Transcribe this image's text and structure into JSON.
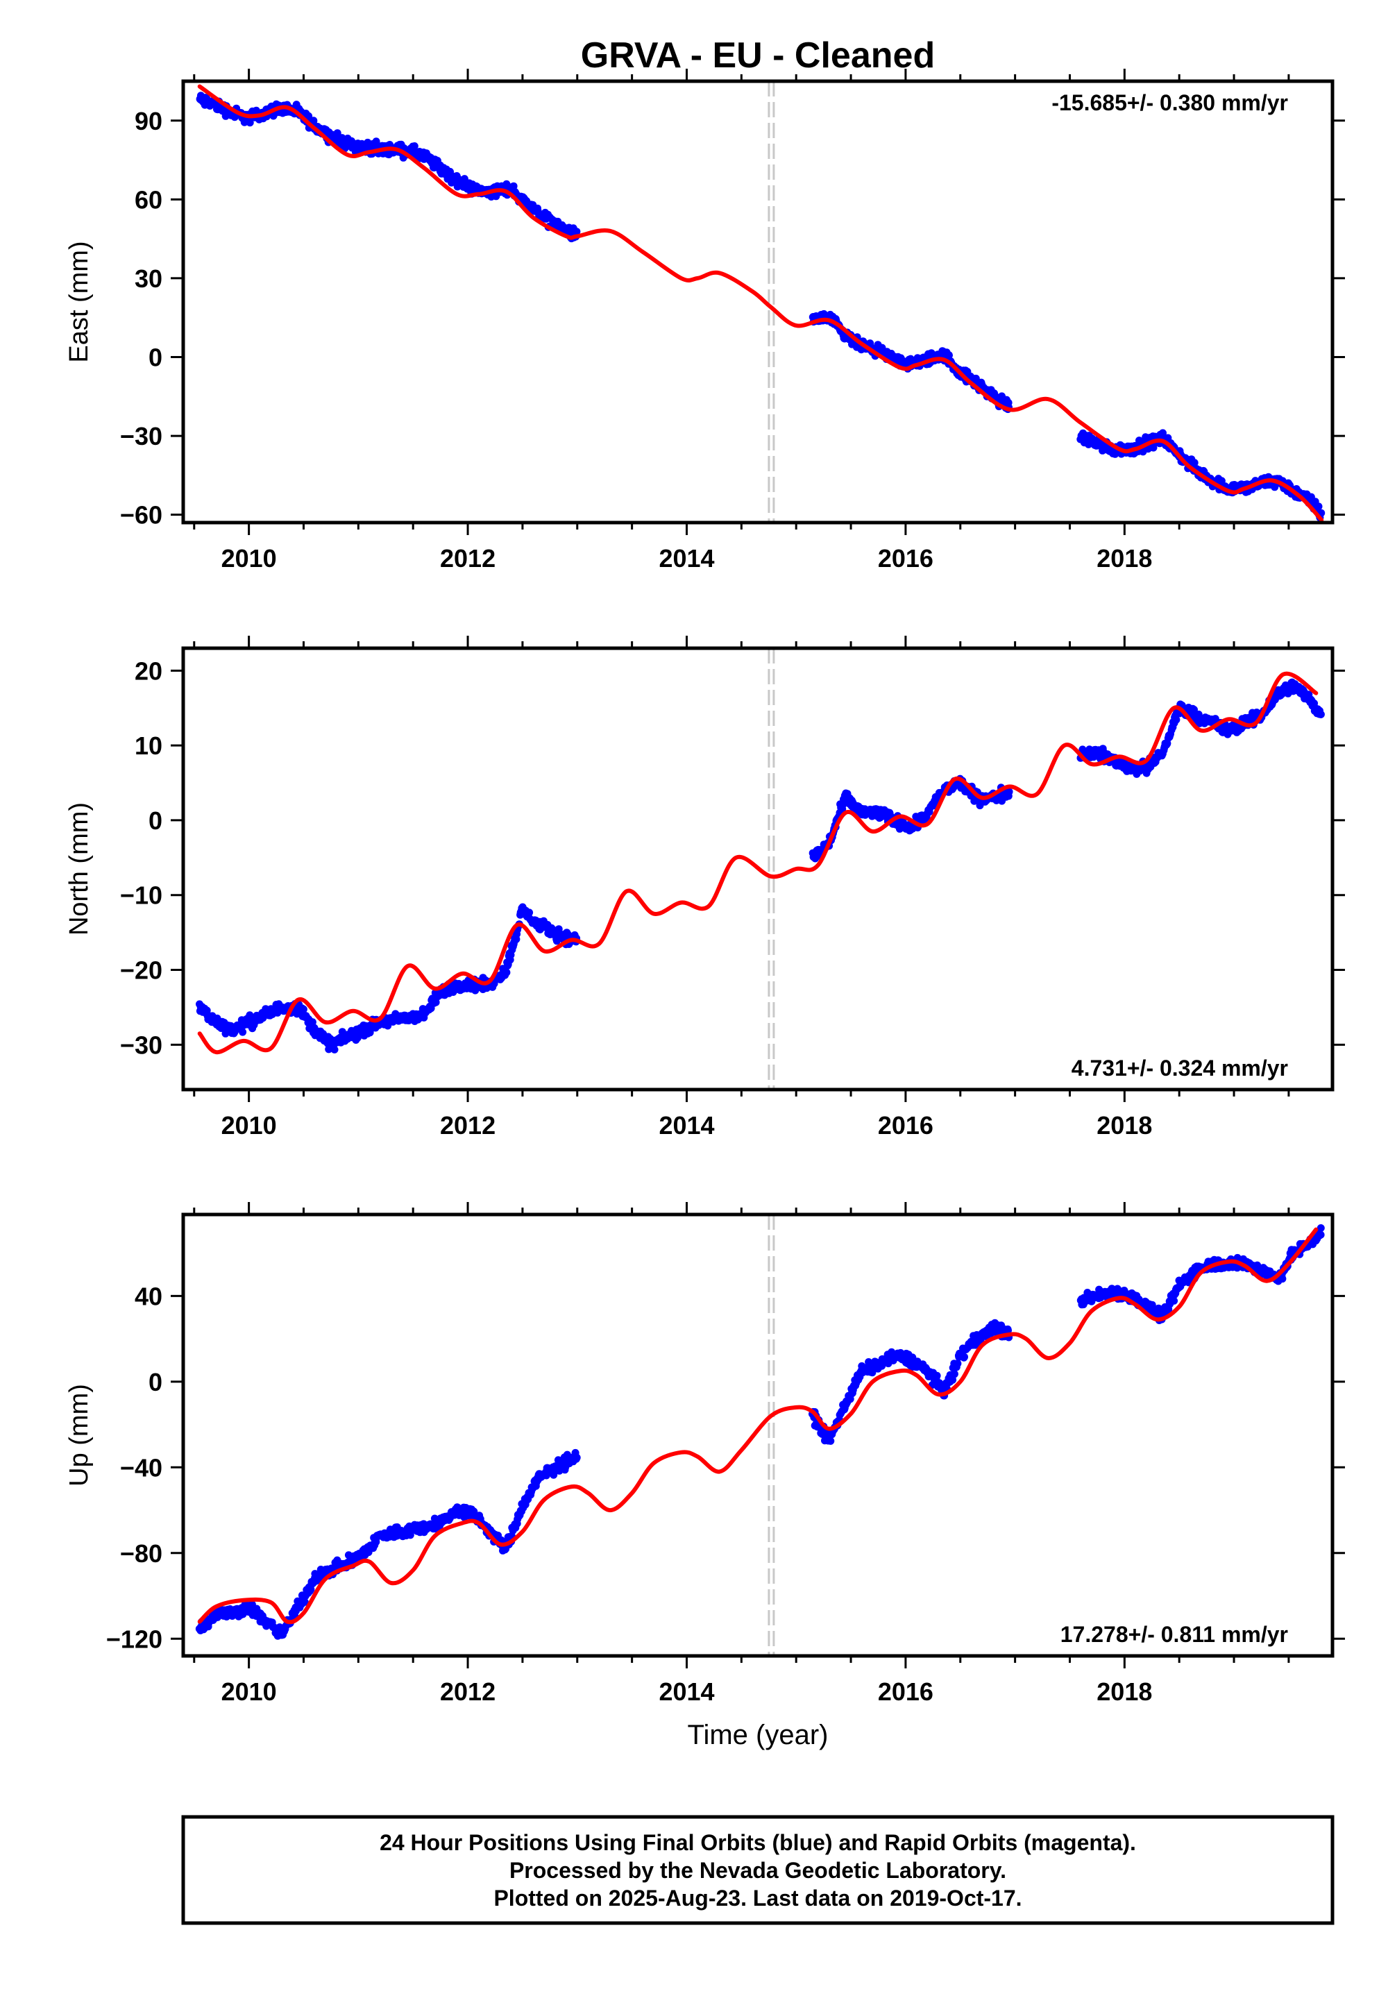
{
  "title": "GRVA  - EU - Cleaned",
  "colors": {
    "final_orbits": "#0000ff",
    "model": "#ff0000",
    "break": "#c8c8c8",
    "frame": "#000000"
  },
  "xlabel": "Time (year)",
  "footer": [
    "24 Hour Positions Using Final Orbits (blue) and Rapid Orbits (magenta).",
    "Processed by the Nevada Geodetic Laboratory.",
    "Plotted on 2025-Aug-23. Last data on 2019-Oct-17."
  ],
  "chart_data": [
    {
      "type": "scatter",
      "component": "East",
      "ylabel": "East (mm)",
      "rate_text": "-15.685+/- 0.380 mm/yr",
      "rate_position": "top-right",
      "xlim": [
        2009.4,
        2019.9
      ],
      "ylim": [
        -63,
        105
      ],
      "xticks": [
        2010,
        2012,
        2014,
        2016,
        2018
      ],
      "yticks": [
        90,
        60,
        30,
        0,
        -30,
        -60
      ],
      "equipment_change": 2014.77,
      "data_spans": [
        [
          2009.55,
          2013.0
        ],
        [
          2015.15,
          2016.95
        ],
        [
          2017.6,
          2019.8
        ]
      ],
      "model": {
        "name": "fit",
        "x": [
          2009.55,
          2009.9,
          2010.1,
          2010.35,
          2010.6,
          2010.9,
          2011.1,
          2011.35,
          2011.6,
          2011.9,
          2012.1,
          2012.35,
          2012.6,
          2012.9,
          2013.0,
          2013.3,
          2013.6,
          2013.95,
          2014.1,
          2014.3,
          2014.6,
          2014.77,
          2015.0,
          2015.3,
          2015.6,
          2015.95,
          2016.1,
          2016.35,
          2016.6,
          2016.95,
          2017.3,
          2017.6,
          2017.95,
          2018.1,
          2018.35,
          2018.6,
          2018.95,
          2019.1,
          2019.35,
          2019.6,
          2019.8
        ],
        "y": [
          103,
          93,
          92,
          95,
          87,
          77,
          78,
          79,
          72,
          62,
          62,
          63,
          53,
          46,
          46,
          48,
          40,
          30,
          30,
          32,
          25,
          19,
          12,
          14,
          5,
          -4,
          -3,
          -1,
          -10,
          -20,
          -16,
          -25,
          -35,
          -35,
          -32,
          -42,
          -51,
          -50,
          -47,
          -53,
          -62
        ]
      },
      "observed": {
        "name": "final orbits",
        "x": [
          2009.55,
          2009.7,
          2009.85,
          2010.0,
          2010.15,
          2010.3,
          2010.45,
          2010.6,
          2010.75,
          2010.9,
          2011.05,
          2011.2,
          2011.35,
          2011.5,
          2011.65,
          2011.8,
          2011.95,
          2012.1,
          2012.25,
          2012.4,
          2012.55,
          2012.7,
          2012.85,
          2013.0,
          2015.15,
          2015.3,
          2015.45,
          2015.6,
          2015.75,
          2015.9,
          2016.05,
          2016.2,
          2016.35,
          2016.5,
          2016.65,
          2016.8,
          2016.95,
          2017.6,
          2017.75,
          2017.9,
          2018.05,
          2018.2,
          2018.35,
          2018.5,
          2018.65,
          2018.8,
          2018.95,
          2019.1,
          2019.25,
          2019.4,
          2019.55,
          2019.7,
          2019.8
        ],
        "y": [
          98,
          96,
          93,
          91,
          93,
          95,
          93,
          88,
          84,
          81,
          80,
          79,
          79,
          78,
          75,
          70,
          66,
          63,
          63,
          64,
          58,
          53,
          49,
          46,
          14,
          15,
          8,
          4,
          2,
          -1,
          -3,
          -1,
          1,
          -6,
          -10,
          -15,
          -19,
          -30,
          -33,
          -35,
          -35,
          -33,
          -31,
          -37,
          -43,
          -47,
          -50,
          -50,
          -48,
          -47,
          -51,
          -55,
          -60
        ]
      }
    },
    {
      "type": "scatter",
      "component": "North",
      "ylabel": "North (mm)",
      "rate_text": "4.731+/- 0.324 mm/yr",
      "rate_position": "bottom-right",
      "xlim": [
        2009.4,
        2019.9
      ],
      "ylim": [
        -36,
        23
      ],
      "xticks": [
        2010,
        2012,
        2014,
        2016,
        2018
      ],
      "yticks": [
        20,
        10,
        0,
        -10,
        -20,
        -30
      ],
      "equipment_change": 2014.77,
      "data_spans": [
        [
          2009.55,
          2013.0
        ],
        [
          2015.15,
          2016.95
        ],
        [
          2017.6,
          2019.8
        ]
      ],
      "model": {
        "name": "fit",
        "x": [
          2009.55,
          2009.7,
          2009.95,
          2010.2,
          2010.45,
          2010.7,
          2010.95,
          2011.2,
          2011.45,
          2011.7,
          2011.95,
          2012.2,
          2012.45,
          2012.7,
          2012.95,
          2013.2,
          2013.45,
          2013.7,
          2013.95,
          2014.2,
          2014.45,
          2014.77,
          2015.0,
          2015.2,
          2015.45,
          2015.7,
          2015.95,
          2016.2,
          2016.45,
          2016.7,
          2016.95,
          2017.2,
          2017.45,
          2017.7,
          2017.95,
          2018.2,
          2018.45,
          2018.7,
          2018.95,
          2019.2,
          2019.45,
          2019.75
        ],
        "y": [
          -28.5,
          -31,
          -29.5,
          -30.5,
          -24,
          -27,
          -25.5,
          -26.5,
          -19.5,
          -22.5,
          -20.5,
          -21.5,
          -14,
          -17.5,
          -16,
          -16.5,
          -9.5,
          -12.5,
          -11,
          -11.5,
          -5,
          -7.5,
          -6.5,
          -6,
          1,
          -1.5,
          0.5,
          -0.5,
          5.5,
          3,
          4.5,
          3.5,
          10,
          7.5,
          8.5,
          8,
          15,
          12,
          13.5,
          13,
          19.5,
          17
        ]
      },
      "observed": {
        "name": "final orbits",
        "x": [
          2009.55,
          2009.7,
          2009.85,
          2010.0,
          2010.15,
          2010.3,
          2010.45,
          2010.6,
          2010.75,
          2010.9,
          2011.05,
          2011.2,
          2011.6,
          2011.75,
          2011.9,
          2012.05,
          2012.2,
          2012.35,
          2012.5,
          2012.65,
          2012.8,
          2012.95,
          2015.15,
          2015.3,
          2015.45,
          2015.6,
          2015.75,
          2015.9,
          2016.05,
          2016.2,
          2016.35,
          2016.5,
          2016.65,
          2016.8,
          2016.95,
          2017.6,
          2017.75,
          2017.9,
          2018.05,
          2018.2,
          2018.35,
          2018.5,
          2018.65,
          2018.8,
          2018.95,
          2019.1,
          2019.25,
          2019.4,
          2019.55,
          2019.7,
          2019.8
        ],
        "y": [
          -25,
          -27,
          -28,
          -27,
          -26,
          -25,
          -25,
          -28,
          -30,
          -29,
          -28,
          -27,
          -26,
          -23,
          -22,
          -22,
          -22,
          -20,
          -12,
          -14,
          -15,
          -16,
          -5,
          -3,
          3,
          1,
          1,
          0,
          -1,
          1,
          4,
          5,
          3,
          3,
          4,
          9,
          9,
          8,
          7,
          7,
          9,
          15,
          14,
          13,
          12,
          13,
          14,
          17,
          18,
          16,
          14
        ]
      }
    },
    {
      "type": "scatter",
      "component": "Up",
      "ylabel": "Up (mm)",
      "rate_text": "17.278+/- 0.811 mm/yr",
      "rate_position": "bottom-right",
      "xlim": [
        2009.4,
        2019.9
      ],
      "ylim": [
        -128,
        78
      ],
      "xticks": [
        2010,
        2012,
        2014,
        2016,
        2018
      ],
      "yticks": [
        40,
        0,
        -40,
        -80,
        -120
      ],
      "equipment_change": 2014.77,
      "data_spans": [
        [
          2009.55,
          2013.0
        ],
        [
          2015.15,
          2016.95
        ],
        [
          2017.6,
          2019.8
        ]
      ],
      "model": {
        "name": "fit",
        "x": [
          2009.55,
          2009.7,
          2009.95,
          2010.2,
          2010.35,
          2010.5,
          2010.7,
          2010.95,
          2011.1,
          2011.3,
          2011.5,
          2011.7,
          2011.95,
          2012.1,
          2012.3,
          2012.5,
          2012.7,
          2012.95,
          2013.1,
          2013.3,
          2013.5,
          2013.7,
          2013.95,
          2014.1,
          2014.3,
          2014.5,
          2014.77,
          2015.0,
          2015.15,
          2015.3,
          2015.5,
          2015.7,
          2015.95,
          2016.1,
          2016.3,
          2016.5,
          2016.7,
          2016.95,
          2017.1,
          2017.3,
          2017.5,
          2017.7,
          2017.95,
          2018.1,
          2018.3,
          2018.5,
          2018.7,
          2018.95,
          2019.1,
          2019.3,
          2019.5,
          2019.75
        ],
        "y": [
          -112,
          -105,
          -102,
          -103,
          -112,
          -108,
          -92,
          -86,
          -84,
          -94,
          -88,
          -72,
          -66,
          -66,
          -76,
          -70,
          -55,
          -49,
          -52,
          -60,
          -52,
          -38,
          -33,
          -35,
          -42,
          -32,
          -16,
          -12,
          -14,
          -22,
          -15,
          0,
          5,
          3,
          -6,
          0,
          17,
          22,
          20,
          11,
          18,
          33,
          39,
          36,
          29,
          35,
          51,
          56,
          54,
          47,
          55,
          71
        ]
      },
      "observed": {
        "name": "final orbits",
        "x": [
          2009.55,
          2009.7,
          2009.85,
          2010.0,
          2010.15,
          2010.3,
          2010.45,
          2010.6,
          2010.75,
          2010.9,
          2011.05,
          2011.2,
          2011.6,
          2011.75,
          2011.9,
          2012.05,
          2012.2,
          2012.35,
          2012.5,
          2012.65,
          2012.8,
          2012.95,
          2015.15,
          2015.3,
          2015.45,
          2015.6,
          2015.75,
          2015.9,
          2016.05,
          2016.2,
          2016.35,
          2016.5,
          2016.65,
          2016.8,
          2016.95,
          2017.6,
          2017.75,
          2017.9,
          2018.05,
          2018.2,
          2018.35,
          2018.5,
          2018.65,
          2018.8,
          2018.95,
          2019.1,
          2019.25,
          2019.4,
          2019.55,
          2019.7,
          2019.8
        ],
        "y": [
          -115,
          -108,
          -108,
          -105,
          -112,
          -118,
          -105,
          -92,
          -88,
          -85,
          -80,
          -72,
          -68,
          -66,
          -60,
          -62,
          -70,
          -78,
          -58,
          -45,
          -40,
          -36,
          -15,
          -28,
          -10,
          5,
          8,
          12,
          10,
          5,
          -5,
          12,
          20,
          25,
          22,
          38,
          40,
          42,
          40,
          35,
          30,
          45,
          52,
          55,
          55,
          55,
          52,
          48,
          60,
          65,
          70
        ]
      }
    }
  ]
}
